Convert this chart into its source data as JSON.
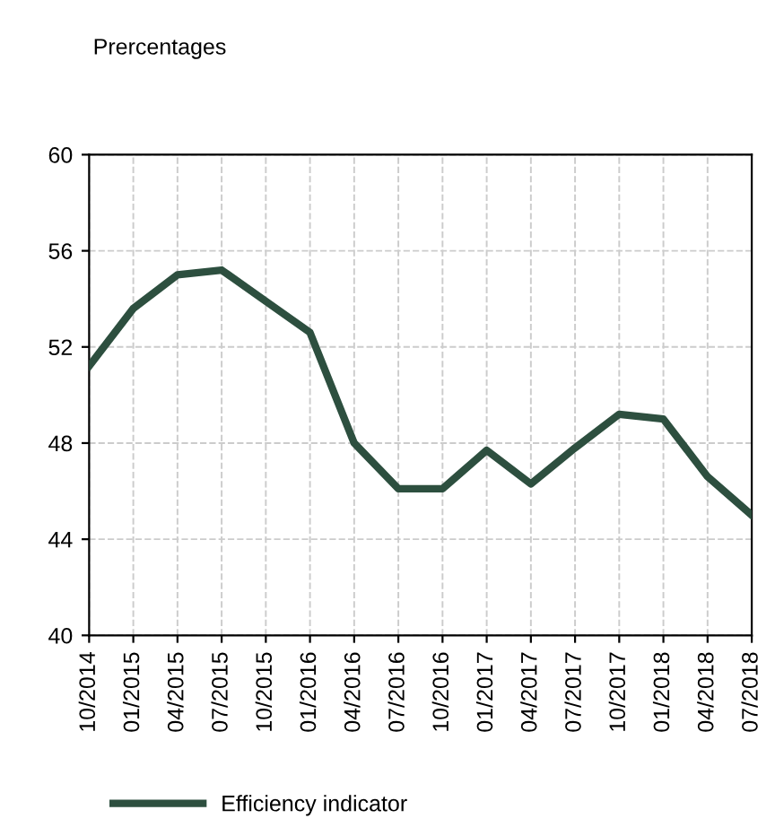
{
  "chart_data": {
    "type": "line",
    "ylabel": "Prercentages",
    "categories": [
      "10/2014",
      "01/2015",
      "04/2015",
      "07/2015",
      "10/2015",
      "01/2016",
      "04/2016",
      "07/2016",
      "10/2016",
      "01/2017",
      "04/2017",
      "07/2017",
      "10/2017",
      "01/2018",
      "04/2018",
      "07/2018"
    ],
    "series": [
      {
        "name": "Efficiency indicator",
        "color": "#2d4f3f",
        "values": [
          51.2,
          53.6,
          55.0,
          55.2,
          53.9,
          52.6,
          48.0,
          46.1,
          46.1,
          47.7,
          46.3,
          47.8,
          49.2,
          49.0,
          46.6,
          45.0
        ]
      }
    ],
    "ylim": [
      40,
      60
    ],
    "yticks": [
      40,
      44,
      48,
      52,
      56,
      60
    ],
    "grid": true,
    "legend": "bottom",
    "marker": "none",
    "line_style": "solid"
  }
}
